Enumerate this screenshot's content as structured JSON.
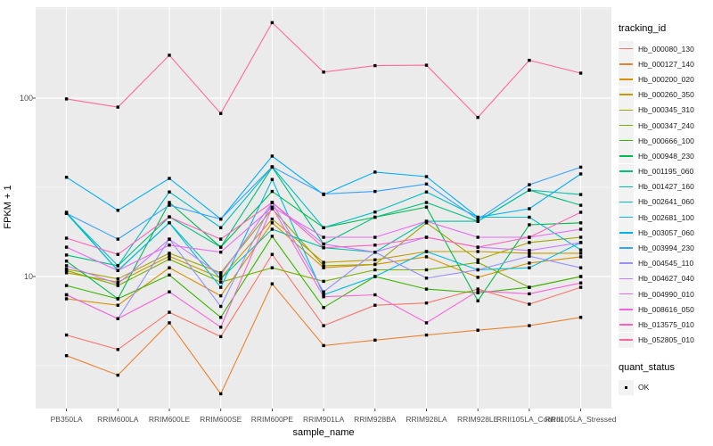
{
  "figure": {
    "background": "#FFFFFF",
    "panel_background": "#EBEBEB",
    "grid_color": "#FFFFFF",
    "tick_color": "#333333",
    "tick_label_color": "#4D4D4D",
    "point_color": "#000000"
  },
  "axes": {
    "x_title": "sample_name",
    "y_title": "FPKM + 1",
    "y_ticks": [
      {
        "label": "100",
        "value": 100
      },
      {
        "label": "10",
        "value": 10
      }
    ],
    "y_minor_breaks": [
      3.1623,
      31.623,
      316.23
    ]
  },
  "legend": {
    "color_title": "tracking_id",
    "shape_title": "quant_status",
    "shape_items": [
      {
        "label": "OK"
      }
    ]
  },
  "chart_data": {
    "type": "line",
    "log_y": true,
    "title": "",
    "xlabel": "sample_name",
    "ylabel": "FPKM + 1",
    "ylim": [
      1.8,
      324
    ],
    "grid": true,
    "legend_position": "right",
    "categories": [
      "PB350LA",
      "RRIM600LA",
      "RRIM600LE",
      "RRIM600SE",
      "RRIM600PE",
      "RRIM901LA",
      "RRIM928BA",
      "RRIM928LA",
      "RRIM928LE",
      "RRII105LA_Control",
      "RRII105LA_Stressed"
    ],
    "series": [
      {
        "name": "Hb_000080_130",
        "color": "#F8766D",
        "values": [
          4.7,
          3.9,
          6.3,
          4.6,
          13.3,
          5.3,
          6.9,
          7.1,
          8.5,
          7.0,
          8.7
        ]
      },
      {
        "name": "Hb_000127_140",
        "color": "#EA8331",
        "values": [
          3.6,
          2.8,
          5.5,
          2.2,
          9.1,
          4.1,
          4.4,
          4.7,
          5.0,
          5.3,
          5.9
        ]
      },
      {
        "name": "Hb_000200_020",
        "color": "#D89000",
        "values": [
          7.5,
          6.9,
          11.2,
          7.8,
          20.0,
          11.2,
          11.7,
          12.9,
          9.9,
          11.9,
          12.9
        ]
      },
      {
        "name": "Hb_000260_350",
        "color": "#C09B00",
        "values": [
          10.5,
          9.3,
          13.0,
          9.8,
          21.0,
          12.0,
          12.4,
          13.8,
          13.8,
          13.5,
          13.5
        ]
      },
      {
        "name": "Hb_000345_310",
        "color": "#A3A500",
        "values": [
          11.0,
          9.7,
          13.5,
          10.5,
          24.0,
          11.5,
          11.7,
          20.0,
          12.4,
          15.5,
          16.6
        ]
      },
      {
        "name": "Hb_000347_240",
        "color": "#7CAE00",
        "values": [
          10.8,
          8.9,
          12.5,
          9.3,
          11.2,
          9.4,
          10.9,
          10.9,
          12.0,
          8.7,
          10.0
        ]
      },
      {
        "name": "Hb_000666_100",
        "color": "#39B600",
        "values": [
          8.9,
          7.5,
          10.2,
          5.9,
          16.8,
          6.7,
          10.0,
          8.5,
          8.1,
          8.7,
          10.0
        ]
      },
      {
        "name": "Hb_000948_230",
        "color": "#00BB4E",
        "values": [
          12.2,
          7.5,
          26.0,
          14.6,
          30.0,
          18.8,
          21.5,
          24.5,
          7.3,
          19.5,
          20.0
        ]
      },
      {
        "name": "Hb_001195_060",
        "color": "#00BF7D",
        "values": [
          13.2,
          11.5,
          21.6,
          14.6,
          41.0,
          15.2,
          21.5,
          26.0,
          20.4,
          30.5,
          25.1
        ]
      },
      {
        "name": "Hb_001427_160",
        "color": "#00C1A3",
        "values": [
          22.6,
          10.8,
          20.0,
          9.7,
          18.4,
          14.5,
          13.7,
          20.4,
          20.4,
          30.5,
          28.8
        ]
      },
      {
        "name": "Hb_002641_060",
        "color": "#00BFC4",
        "values": [
          22.6,
          11.5,
          29.8,
          18.8,
          41.2,
          18.8,
          23.0,
          29.8,
          21.5,
          21.5,
          14.1
        ]
      },
      {
        "name": "Hb_002681_100",
        "color": "#00BAE0",
        "values": [
          22.9,
          10.8,
          20.0,
          8.7,
          35.0,
          7.9,
          10.0,
          13.8,
          10.9,
          11.2,
          15.5
        ]
      },
      {
        "name": "Hb_003057_060",
        "color": "#00B0F6",
        "values": [
          36.0,
          23.5,
          35.5,
          21.0,
          47.3,
          28.8,
          38.5,
          36.3,
          21.5,
          24.0,
          37.6
        ]
      },
      {
        "name": "Hb_003994_230",
        "color": "#35A2FF",
        "values": [
          22.6,
          16.2,
          25.1,
          21.0,
          41.2,
          29.0,
          30.0,
          33.0,
          20.9,
          32.7,
          41.0
        ]
      },
      {
        "name": "Hb_004545_110",
        "color": "#9590FF",
        "values": [
          7.9,
          5.8,
          16.2,
          6.8,
          26.0,
          8.2,
          13.7,
          9.8,
          10.9,
          13.0,
          11.2
        ]
      },
      {
        "name": "Hb_004627_040",
        "color": "#C77CFF",
        "values": [
          11.5,
          9.1,
          16.2,
          10.2,
          26.0,
          15.2,
          13.7,
          16.6,
          14.6,
          14.0,
          15.5
        ]
      },
      {
        "name": "Hb_004990_010",
        "color": "#E76BF3",
        "values": [
          14.6,
          10.8,
          15.0,
          13.7,
          24.5,
          16.6,
          16.6,
          20.4,
          16.6,
          16.6,
          18.4
        ]
      },
      {
        "name": "Hb_008616_050",
        "color": "#FA62DB",
        "values": [
          7.9,
          5.8,
          8.2,
          5.2,
          24.5,
          7.7,
          7.9,
          5.5,
          8.3,
          8.0,
          9.2
        ]
      },
      {
        "name": "Hb_013575_010",
        "color": "#FF62BC",
        "values": [
          16.4,
          13.3,
          21.6,
          16.2,
          26.0,
          14.5,
          15.0,
          16.6,
          14.6,
          16.6,
          22.9
        ]
      },
      {
        "name": "Hb_052805_010",
        "color": "#FF6A98",
        "values": [
          99.0,
          89.0,
          174.0,
          82.0,
          265.0,
          140.0,
          152.0,
          153.0,
          78.0,
          163.0,
          138.0
        ]
      }
    ]
  }
}
